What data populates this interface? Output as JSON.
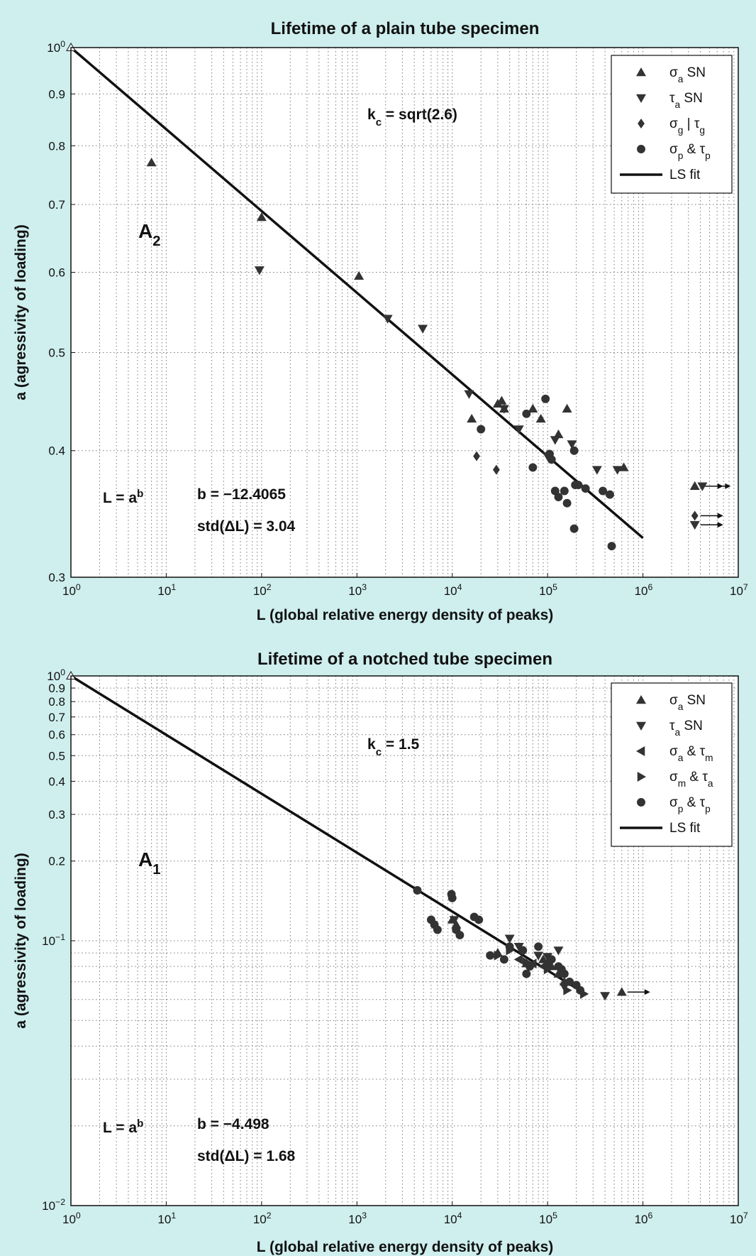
{
  "background": "#cfeeee",
  "colors": {
    "axes_bg": "#ffffff",
    "grid": "#777777",
    "fit_line": "#111111",
    "marker": "#333333",
    "frame": "#111111"
  },
  "chart_data": [
    {
      "id": "plain",
      "type": "scatter",
      "title": "Lifetime of a plain tube specimen",
      "xlabel": "L  (global relative energy density of peaks)",
      "ylabel": "a  (agressivity of loading)",
      "xscale": "log",
      "yscale": "log",
      "xlim": [
        1,
        10000000
      ],
      "ylim": [
        0.3,
        1
      ],
      "grid": true,
      "x_ticks": [
        {
          "base": "10",
          "exp": "0",
          "v": 1
        },
        {
          "base": "10",
          "exp": "1",
          "v": 10
        },
        {
          "base": "10",
          "exp": "2",
          "v": 100
        },
        {
          "base": "10",
          "exp": "3",
          "v": 1000
        },
        {
          "base": "10",
          "exp": "4",
          "v": 10000
        },
        {
          "base": "10",
          "exp": "5",
          "v": 100000
        },
        {
          "base": "10",
          "exp": "6",
          "v": 1000000
        },
        {
          "base": "10",
          "exp": "7",
          "v": 10000000
        }
      ],
      "y_ticks": [
        {
          "base": "0.3",
          "exp": "",
          "v": 0.3
        },
        {
          "base": "0.4",
          "exp": "",
          "v": 0.4
        },
        {
          "base": "0.5",
          "exp": "",
          "v": 0.5
        },
        {
          "base": "0.6",
          "exp": "",
          "v": 0.6
        },
        {
          "base": "0.7",
          "exp": "",
          "v": 0.7
        },
        {
          "base": "0.8",
          "exp": "",
          "v": 0.8
        },
        {
          "base": "0.9",
          "exp": "",
          "v": 0.9
        },
        {
          "base": "10",
          "exp": "0",
          "v": 1
        }
      ],
      "legend": {
        "position": "top-right",
        "entries": [
          {
            "marker": "up",
            "sym": "σ",
            "sub": "a",
            "text": "SN"
          },
          {
            "marker": "down",
            "sym": "τ",
            "sub": "a",
            "text": "SN"
          },
          {
            "marker": "diamond",
            "sym": "σ",
            "sub": "g",
            "text": " | τ",
            "sub2": "g"
          },
          {
            "marker": "circle",
            "sym": "σ",
            "sub": "p",
            "text": " & τ",
            "sub2": "p"
          },
          {
            "marker": "line",
            "sym": "",
            "sub": "",
            "text": "LS  fit"
          }
        ]
      },
      "annotations": {
        "kc": {
          "main": "k",
          "sub": "c",
          "rest": " = sqrt(2.6)"
        },
        "region": {
          "main": "A",
          "sub": "2"
        },
        "law": {
          "main": "L = a",
          "sup": "b"
        },
        "b": "b = −12.4065",
        "std": "std(ΔL) = 3.04"
      },
      "fit": {
        "x": [
          1,
          1000000
        ],
        "y": [
          1.0,
          0.328
        ]
      },
      "open_marker": {
        "x": 1,
        "y": 1.0
      },
      "series": [
        {
          "marker": "up",
          "x": [
            7,
            100,
            1050,
            16000,
            30000,
            33000,
            35000,
            70000,
            85000,
            130000,
            160000,
            630000
          ],
          "y": [
            0.77,
            0.68,
            0.595,
            0.43,
            0.445,
            0.448,
            0.44,
            0.44,
            0.43,
            0.415,
            0.44,
            0.385
          ]
        },
        {
          "marker": "down",
          "x": [
            95,
            2100,
            4900,
            15000,
            35000,
            50000,
            100000,
            120000,
            180000,
            330000,
            540000
          ],
          "y": [
            0.603,
            0.54,
            0.528,
            0.455,
            0.44,
            0.42,
            0.395,
            0.41,
            0.406,
            0.383,
            0.383
          ]
        },
        {
          "marker": "diamond",
          "x": [
            18000,
            29000
          ],
          "y": [
            0.395,
            0.383
          ]
        },
        {
          "marker": "circle",
          "x": [
            20000,
            60000,
            70000,
            95000,
            105000,
            110000,
            120000,
            130000,
            150000,
            160000,
            190000,
            195000,
            210000,
            250000,
            380000,
            450000,
            470000,
            190000
          ],
          "y": [
            0.42,
            0.435,
            0.385,
            0.45,
            0.397,
            0.392,
            0.365,
            0.36,
            0.365,
            0.355,
            0.4,
            0.37,
            0.37,
            0.367,
            0.365,
            0.362,
            0.322,
            0.335
          ]
        },
        {
          "marker": "up",
          "x": [
            3500000
          ],
          "y": [
            0.369
          ],
          "arrow": true
        },
        {
          "marker": "down",
          "x": [
            4200000
          ],
          "y": [
            0.369
          ],
          "arrow": true
        },
        {
          "marker": "diamond",
          "x": [
            3500000
          ],
          "y": [
            0.345
          ],
          "arrow": true
        },
        {
          "marker": "down",
          "x": [
            3500000
          ],
          "y": [
            0.338
          ],
          "arrow": true
        }
      ]
    },
    {
      "id": "notched",
      "type": "scatter",
      "title": "Lifetime of a notched tube specimen",
      "xlabel": "L  (global relative energy density of peaks)",
      "ylabel": "a  (agressivity of loading)",
      "xscale": "log",
      "yscale": "log",
      "xlim": [
        1,
        10000000
      ],
      "ylim": [
        0.01,
        1
      ],
      "grid": true,
      "x_ticks": [
        {
          "base": "10",
          "exp": "0",
          "v": 1
        },
        {
          "base": "10",
          "exp": "1",
          "v": 10
        },
        {
          "base": "10",
          "exp": "2",
          "v": 100
        },
        {
          "base": "10",
          "exp": "3",
          "v": 1000
        },
        {
          "base": "10",
          "exp": "4",
          "v": 10000
        },
        {
          "base": "10",
          "exp": "5",
          "v": 100000
        },
        {
          "base": "10",
          "exp": "6",
          "v": 1000000
        },
        {
          "base": "10",
          "exp": "7",
          "v": 10000000
        }
      ],
      "y_ticks": [
        {
          "base": "10",
          "exp": "−2",
          "v": 0.01
        },
        {
          "base": "10",
          "exp": "−1",
          "v": 0.1
        },
        {
          "base": "0.2",
          "exp": "",
          "v": 0.2
        },
        {
          "base": "0.3",
          "exp": "",
          "v": 0.3
        },
        {
          "base": "0.4",
          "exp": "",
          "v": 0.4
        },
        {
          "base": "0.5",
          "exp": "",
          "v": 0.5
        },
        {
          "base": "0.6",
          "exp": "",
          "v": 0.6
        },
        {
          "base": "0.7",
          "exp": "",
          "v": 0.7
        },
        {
          "base": "0.8",
          "exp": "",
          "v": 0.8
        },
        {
          "base": "0.9",
          "exp": "",
          "v": 0.9
        },
        {
          "base": "10",
          "exp": "0",
          "v": 1
        }
      ],
      "legend": {
        "position": "top-right",
        "entries": [
          {
            "marker": "up",
            "sym": "σ",
            "sub": "a",
            "text": "SN"
          },
          {
            "marker": "down",
            "sym": "τ",
            "sub": "a",
            "text": "SN"
          },
          {
            "marker": "left",
            "sym": "σ",
            "sub": "a",
            "text": " & τ",
            "sub2": "m"
          },
          {
            "marker": "right",
            "sym": "σ",
            "sub": "m",
            "text": " & τ",
            "sub2": "a"
          },
          {
            "marker": "circle",
            "sym": "σ",
            "sub": "p",
            "text": " & τ",
            "sub2": "p"
          },
          {
            "marker": "line",
            "sym": "",
            "sub": "",
            "text": "LS  fit"
          }
        ]
      },
      "annotations": {
        "kc": {
          "main": "k",
          "sub": "c",
          "rest": " = 1.5"
        },
        "region": {
          "main": "A",
          "sub": "1"
        },
        "law": {
          "main": "L = a",
          "sup": "b"
        },
        "b": "b = −4.498",
        "std": "std(ΔL) = 1.68"
      },
      "fit": {
        "x": [
          1,
          250000
        ],
        "y": [
          1.0,
          0.063
        ]
      },
      "open_marker": {
        "x": 1,
        "y": 1.0
      },
      "series": [
        {
          "marker": "up",
          "x": [
            10000,
            11000,
            30000,
            60000,
            90000,
            110000,
            130000,
            150000
          ],
          "y": [
            0.12,
            0.115,
            0.09,
            0.082,
            0.085,
            0.08,
            0.075,
            0.07
          ]
        },
        {
          "marker": "down",
          "x": [
            10500,
            40000,
            50000,
            80000,
            100000,
            130000,
            150000,
            400000
          ],
          "y": [
            0.12,
            0.102,
            0.095,
            0.088,
            0.087,
            0.092,
            0.067,
            0.062
          ]
        },
        {
          "marker": "left",
          "x": [
            50000,
            70000,
            90000
          ],
          "y": [
            0.085,
            0.082,
            0.08
          ]
        },
        {
          "marker": "right",
          "x": [
            30000,
            40000,
            60000,
            100000,
            160000,
            240000
          ],
          "y": [
            0.088,
            0.092,
            0.083,
            0.078,
            0.065,
            0.063
          ]
        },
        {
          "marker": "circle",
          "x": [
            4300,
            6000,
            6500,
            7000,
            9800,
            10000,
            11000,
            12000,
            17000,
            19000,
            25000,
            35000,
            40000,
            55000,
            60000,
            65000,
            80000,
            100000,
            110000,
            130000,
            140000,
            150000,
            170000,
            200000,
            220000
          ],
          "y": [
            0.155,
            0.12,
            0.115,
            0.11,
            0.15,
            0.145,
            0.11,
            0.105,
            0.123,
            0.12,
            0.088,
            0.085,
            0.095,
            0.092,
            0.075,
            0.08,
            0.095,
            0.082,
            0.085,
            0.08,
            0.078,
            0.075,
            0.07,
            0.068,
            0.065
          ]
        },
        {
          "marker": "up",
          "x": [
            600000
          ],
          "y": [
            0.064
          ],
          "arrow": true
        }
      ]
    }
  ]
}
